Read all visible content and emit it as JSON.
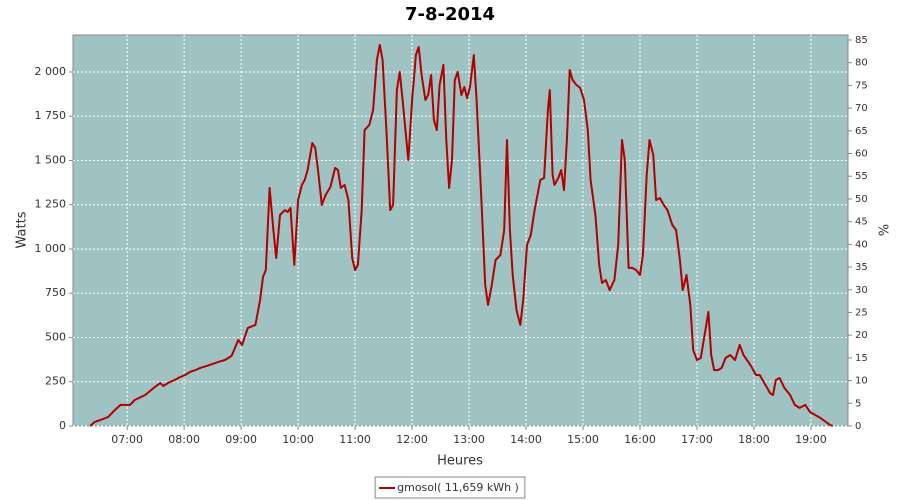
{
  "chart_data": {
    "type": "line",
    "title": "7-8-2014",
    "x_label": "Heures",
    "y_label": "Watts",
    "y2_label": "%",
    "grid": true,
    "plot_background": "#9fc3c3",
    "x": [
      "06:21",
      "06:26",
      "06:32",
      "06:40",
      "06:47",
      "06:53",
      "07:03",
      "07:08",
      "07:19",
      "07:29",
      "07:35",
      "07:38",
      "07:43",
      "07:50",
      "07:56",
      "08:01",
      "08:06",
      "08:12",
      "08:17",
      "08:27",
      "08:36",
      "08:43",
      "08:50",
      "08:57",
      "09:01",
      "09:07",
      "09:15",
      "09:20",
      "09:23",
      "09:26",
      "09:30",
      "09:34",
      "09:37",
      "09:41",
      "09:44",
      "09:46",
      "09:49",
      "09:52",
      "09:56",
      "10:00",
      "10:04",
      "10:07",
      "10:10",
      "10:15",
      "10:18",
      "10:21",
      "10:25",
      "10:29",
      "10:34",
      "10:39",
      "10:42",
      "10:45",
      "10:49",
      "10:53",
      "10:57",
      "11:00",
      "11:03",
      "11:07",
      "11:10",
      "11:15",
      "11:19",
      "11:23",
      "11:26",
      "11:29",
      "11:33",
      "11:37",
      "11:40",
      "11:44",
      "11:47",
      "11:50",
      "11:54",
      "11:56",
      "12:00",
      "12:04",
      "12:07",
      "12:10",
      "12:14",
      "12:17",
      "12:20",
      "12:23",
      "12:26",
      "12:29",
      "12:33",
      "12:36",
      "12:39",
      "12:42",
      "12:45",
      "12:48",
      "12:52",
      "12:55",
      "12:58",
      "13:01",
      "13:05",
      "13:08",
      "13:13",
      "13:17",
      "13:20",
      "13:24",
      "13:28",
      "13:33",
      "13:37",
      "13:40",
      "13:43",
      "13:46",
      "13:50",
      "13:54",
      "13:57",
      "14:01",
      "14:05",
      "14:09",
      "14:15",
      "14:19",
      "14:23",
      "14:25",
      "14:28",
      "14:30",
      "14:34",
      "14:37",
      "14:40",
      "14:43",
      "14:46",
      "14:49",
      "14:53",
      "14:57",
      "15:01",
      "15:05",
      "15:08",
      "15:13",
      "15:17",
      "15:20",
      "15:24",
      "15:28",
      "15:33",
      "15:37",
      "15:41",
      "15:44",
      "15:48",
      "15:52",
      "15:56",
      "16:00",
      "16:03",
      "16:07",
      "16:10",
      "16:14",
      "16:17",
      "16:21",
      "16:25",
      "16:29",
      "16:34",
      "16:38",
      "16:42",
      "16:45",
      "16:49",
      "16:53",
      "16:56",
      "17:00",
      "17:04",
      "17:08",
      "17:12",
      "17:15",
      "17:18",
      "17:22",
      "17:26",
      "17:30",
      "17:35",
      "17:40",
      "17:45",
      "17:49",
      "17:54",
      "17:58",
      "18:02",
      "18:06",
      "18:12",
      "18:17",
      "18:20",
      "18:23",
      "18:27",
      "18:32",
      "18:38",
      "18:43",
      "18:48",
      "18:54",
      "18:59",
      "19:10",
      "19:20",
      "19:23"
    ],
    "series": [
      {
        "name": "gmosol( 11,659 kWh )",
        "color": "#b00000",
        "values": [
          0,
          23,
          34,
          51,
          90,
          119,
          119,
          147,
          175,
          220,
          243,
          226,
          243,
          260,
          277,
          288,
          305,
          316,
          328,
          345,
          362,
          373,
          396,
          486,
          458,
          554,
          571,
          712,
          842,
          881,
          1345,
          1107,
          949,
          1192,
          1209,
          1220,
          1209,
          1232,
          910,
          1277,
          1362,
          1390,
          1446,
          1599,
          1571,
          1446,
          1249,
          1305,
          1350,
          1458,
          1446,
          1345,
          1362,
          1277,
          949,
          881,
          910,
          1220,
          1672,
          1701,
          1785,
          2068,
          2153,
          2068,
          1672,
          1220,
          1249,
          1898,
          2000,
          1842,
          1616,
          1503,
          1842,
          2096,
          2141,
          1983,
          1842,
          1870,
          1983,
          1729,
          1672,
          1927,
          2040,
          1616,
          1345,
          1503,
          1955,
          2000,
          1870,
          1915,
          1853,
          1915,
          2096,
          1842,
          1277,
          797,
          684,
          797,
          938,
          966,
          1107,
          1616,
          1107,
          853,
          655,
          571,
          712,
          1023,
          1079,
          1220,
          1390,
          1401,
          1785,
          1898,
          1418,
          1362,
          1401,
          1446,
          1333,
          1616,
          2011,
          1955,
          1927,
          1910,
          1842,
          1672,
          1390,
          1192,
          910,
          808,
          825,
          768,
          825,
          1023,
          1616,
          1503,
          893,
          893,
          881,
          853,
          966,
          1418,
          1616,
          1531,
          1277,
          1288,
          1249,
          1220,
          1136,
          1107,
          938,
          768,
          853,
          684,
          429,
          373,
          384,
          514,
          644,
          401,
          316,
          316,
          328,
          384,
          401,
          373,
          458,
          401,
          362,
          328,
          288,
          288,
          232,
          186,
          175,
          260,
          271,
          215,
          175,
          119,
          102,
          119,
          79,
          45,
          6,
          0
        ]
      }
    ],
    "xlim": [
      "06:03",
      "19:39"
    ],
    "xticks": [
      "07:00",
      "08:00",
      "09:00",
      "10:00",
      "11:00",
      "12:00",
      "13:00",
      "14:00",
      "15:00",
      "16:00",
      "17:00",
      "18:00",
      "19:00"
    ],
    "ylim": [
      0,
      2209
    ],
    "yticks": [
      0,
      250,
      500,
      750,
      {
        "value": 1000,
        "label": "1 000"
      },
      {
        "value": 1250,
        "label": "1 250"
      },
      {
        "value": 1500,
        "label": "1 500"
      },
      {
        "value": 1750,
        "label": "1 750"
      },
      {
        "value": 2000,
        "label": "2 000"
      }
    ],
    "y2lim": [
      0,
      86.1
    ],
    "y2ticks": [
      0,
      5,
      10,
      15,
      20,
      25,
      30,
      35,
      40,
      45,
      50,
      55,
      60,
      65,
      70,
      75,
      80,
      85
    ]
  }
}
